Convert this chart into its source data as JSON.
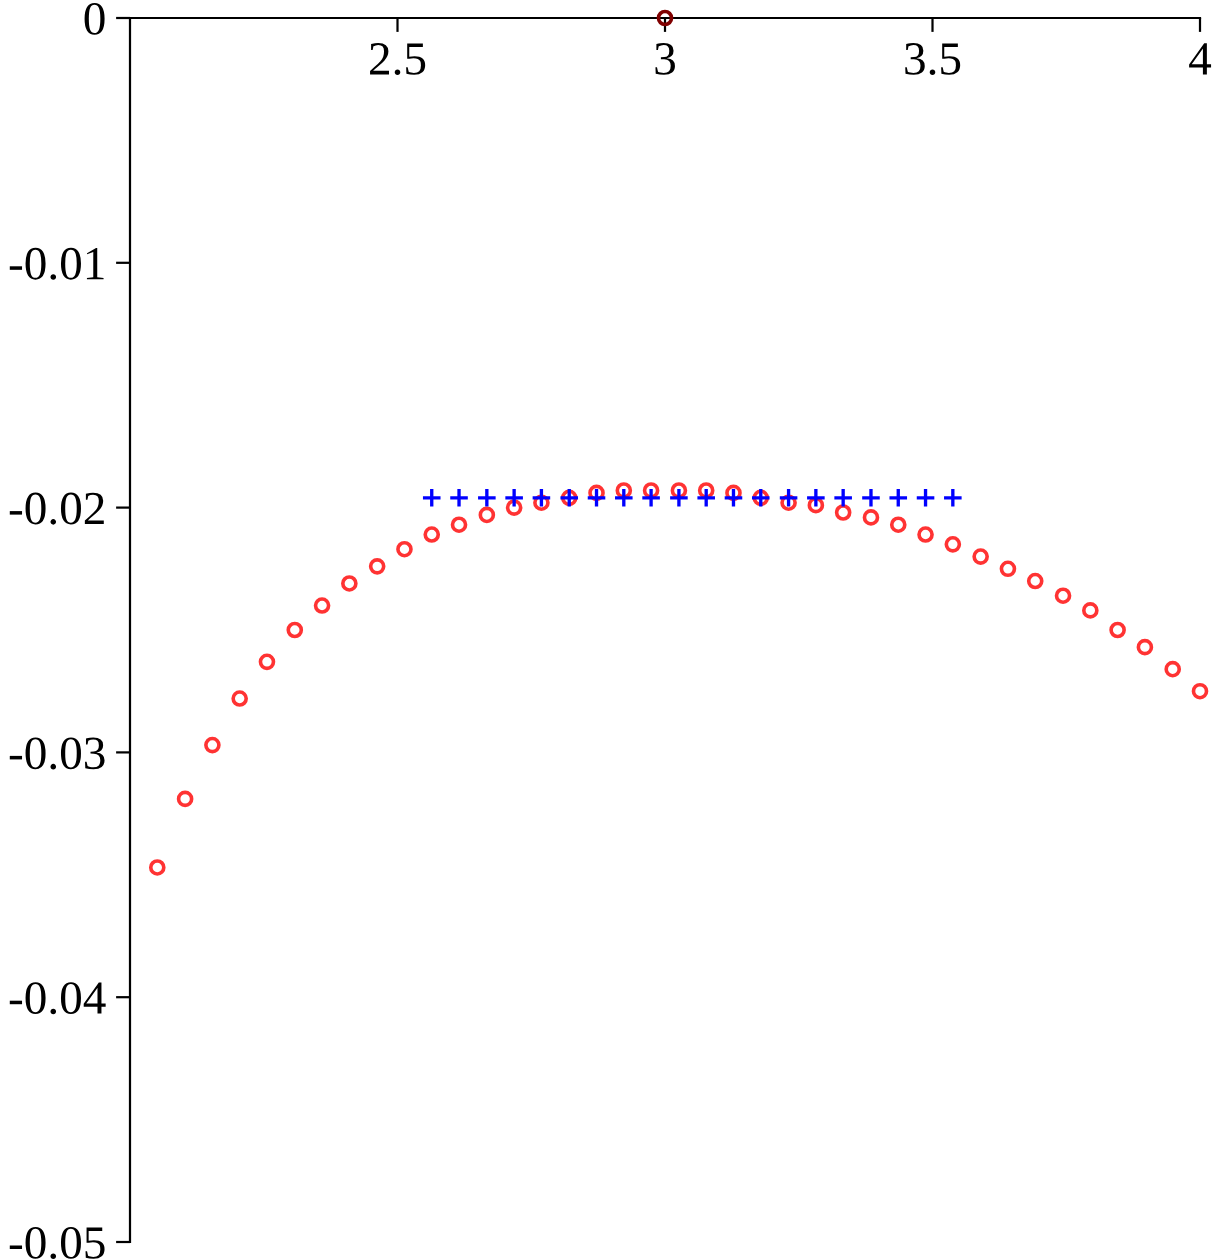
{
  "chart_data": {
    "type": "scatter",
    "xlim": [
      2,
      4
    ],
    "ylim": [
      -0.05,
      0
    ],
    "xticks": [
      2.5,
      3,
      3.5,
      4
    ],
    "yticks": [
      {
        "value": 0,
        "label": "0"
      },
      {
        "value": -0.01,
        "label": "-0.01"
      },
      {
        "value": -0.02,
        "label": "-0.02"
      },
      {
        "value": -0.03,
        "label": "-0.03"
      },
      {
        "value": -0.04,
        "label": "-0.04"
      },
      {
        "value": -0.05,
        "label": "-0.05"
      }
    ],
    "grid": false,
    "legend": false,
    "series": [
      {
        "color": "#ff3333",
        "marker": "circle",
        "x": [
          2.051,
          2.103,
          2.154,
          2.205,
          2.256,
          2.308,
          2.359,
          2.41,
          2.462,
          2.513,
          2.564,
          2.615,
          2.667,
          2.718,
          2.769,
          2.821,
          2.872,
          2.923,
          2.974,
          3.026,
          3.077,
          3.128,
          3.179,
          3.231,
          3.282,
          3.333,
          3.385,
          3.436,
          3.487,
          3.538,
          3.59,
          3.641,
          3.692,
          3.744,
          3.795,
          3.846,
          3.897,
          3.949,
          4.0
        ],
        "values": [
          -0.0347,
          -0.0319,
          -0.0297,
          -0.0278,
          -0.0263,
          -0.025,
          -0.024,
          -0.0231,
          -0.0224,
          -0.0217,
          -0.0211,
          -0.0207,
          -0.0203,
          -0.02,
          -0.0198,
          -0.0196,
          -0.0194,
          -0.0193,
          -0.0193,
          -0.0193,
          -0.0193,
          -0.0194,
          -0.0196,
          -0.0198,
          -0.0199,
          -0.0202,
          -0.0204,
          -0.0207,
          -0.0211,
          -0.0215,
          -0.022,
          -0.0225,
          -0.023,
          -0.0236,
          -0.0242,
          -0.025,
          -0.0257,
          -0.0266,
          -0.0275
        ]
      },
      {
        "color": "#0000ff",
        "marker": "cross",
        "x": [
          2.564,
          2.615,
          2.667,
          2.718,
          2.769,
          2.821,
          2.872,
          2.923,
          2.974,
          3.026,
          3.077,
          3.128,
          3.179,
          3.231,
          3.282,
          3.333,
          3.385,
          3.436,
          3.487,
          3.538
        ],
        "values": [
          -0.0196,
          -0.0196,
          -0.0196,
          -0.0196,
          -0.0196,
          -0.0196,
          -0.0196,
          -0.0196,
          -0.0196,
          -0.0196,
          -0.0196,
          -0.0196,
          -0.0196,
          -0.0196,
          -0.0196,
          -0.0196,
          -0.0196,
          -0.0196,
          -0.0196,
          -0.0196
        ]
      },
      {
        "color": "#800000",
        "marker": "circle",
        "x": [
          3
        ],
        "values": [
          0
        ]
      }
    ]
  }
}
